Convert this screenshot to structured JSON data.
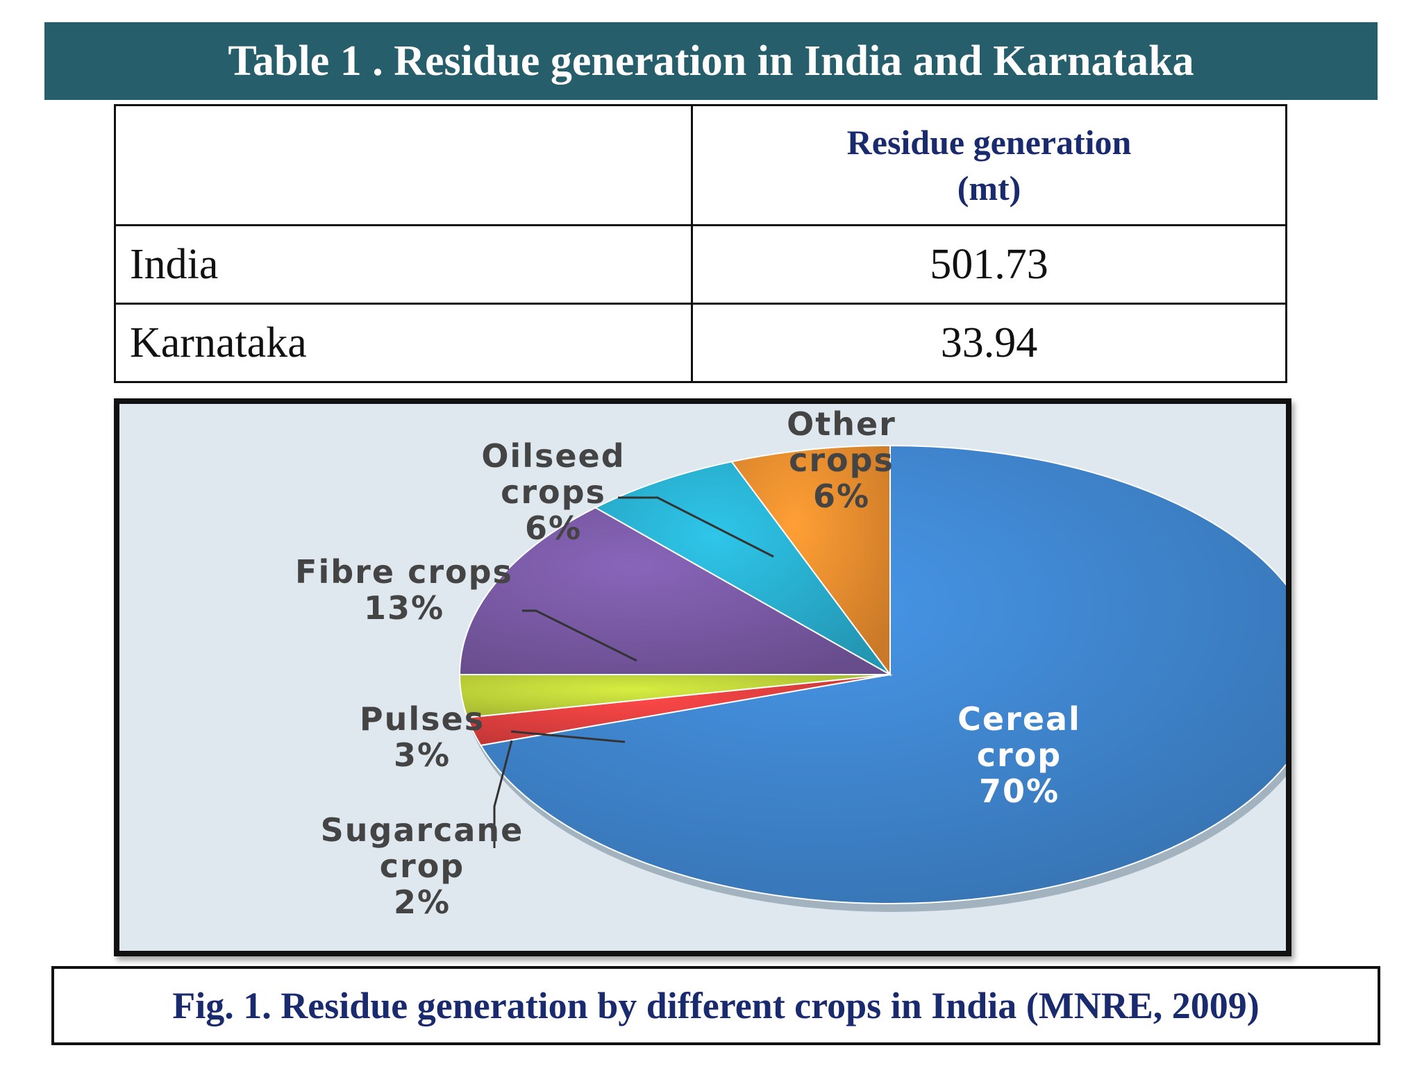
{
  "header": {
    "title": "Table 1 . Residue generation in India and Karnataka"
  },
  "table": {
    "column_header_line1": "Residue generation",
    "column_header_line2": "(mt)",
    "rows": [
      {
        "region": "India",
        "value": "501.73"
      },
      {
        "region": "Karnataka",
        "value": "33.94"
      }
    ]
  },
  "chart_data": {
    "type": "pie",
    "slices": [
      {
        "label_lines": [
          "Cereal",
          "crop"
        ],
        "percent_label": "70%",
        "value": 70,
        "color": "#3f86cf"
      },
      {
        "label_lines": [
          "Sugarcane",
          "crop"
        ],
        "percent_label": "2%",
        "value": 2,
        "color": "#e23f3f"
      },
      {
        "label_lines": [
          "Pulses"
        ],
        "percent_label": "3%",
        "value": 3,
        "color": "#bfd43a"
      },
      {
        "label_lines": [
          "Fibre crops"
        ],
        "percent_label": "13%",
        "value": 13,
        "color": "#7a5aa6"
      },
      {
        "label_lines": [
          "Oilseed",
          "crops"
        ],
        "percent_label": "6%",
        "value": 6,
        "color": "#29b1d1"
      },
      {
        "label_lines": [
          "Other",
          "crops"
        ],
        "percent_label": "6%",
        "value": 6,
        "color": "#ee8e2f"
      }
    ]
  },
  "caption": {
    "text": "Fig. 1. Residue generation by different crops in India (MNRE, 2009)"
  }
}
